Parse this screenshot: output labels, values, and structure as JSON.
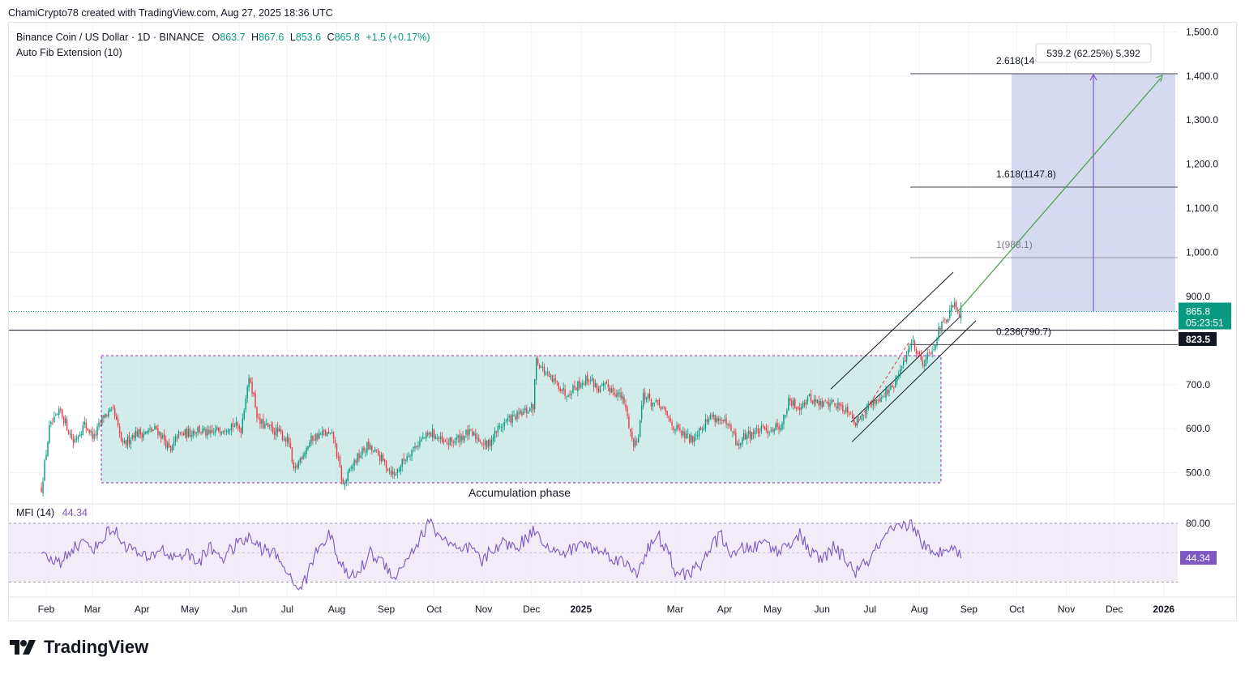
{
  "credit": "ChamiCrypto78 created with TradingView.com, Aug 27, 2025 18:36 UTC",
  "legend": {
    "symbol": "Binance Coin / US Dollar · 1D · BINANCE",
    "o_label": "O",
    "o": "863.7",
    "h_label": "H",
    "h": "867.6",
    "l_label": "L",
    "l": "853.6",
    "c_label": "C",
    "c": "865.8",
    "change": "+1.5 (+0.17%)",
    "indicator": "Auto Fib Extension (10)",
    "mfi_label": "MFI (14)",
    "mfi_value": "44.34"
  },
  "brand": "TradingView",
  "colors": {
    "up": "#089981",
    "down": "#f23645",
    "mfi": "#7e57c2",
    "zone": "#b2dfdb",
    "projection": "#c5cae9"
  },
  "chart_data": {
    "type": "candlestick",
    "title": "Binance Coin / US Dollar · 1D · BINANCE",
    "price_axis": {
      "ticks": [
        "1,500.0",
        "1,400.0",
        "1,300.0",
        "1,200.0",
        "1,100.0",
        "1,000.0",
        "900.0",
        "700.0",
        "600.0",
        "500.0"
      ],
      "ylim": [
        420,
        1500
      ]
    },
    "time_axis": {
      "ticks": [
        "Feb",
        "Mar",
        "Apr",
        "May",
        "Jun",
        "Jul",
        "Aug",
        "Sep",
        "Oct",
        "Nov",
        "Dec",
        "2025",
        "Mar",
        "Apr",
        "May",
        "Jun",
        "Jul",
        "Aug",
        "Sep",
        "Oct",
        "Nov",
        "Dec",
        "2026"
      ]
    },
    "last_price": {
      "value": "865.8",
      "countdown": "05:23:51"
    },
    "horizontal_level": "823.5",
    "fib_levels": [
      {
        "label": "2.618(14",
        "price": 1405
      },
      {
        "label": "1.618(1147.8)",
        "price": 1147.8
      },
      {
        "label": "1(988.1)",
        "price": 988.1
      },
      {
        "label": "0.236(790.7)",
        "price": 790.7
      }
    ],
    "measure_label": "539.2 (62.25%) 5,392",
    "zone_label": "Accumulation phase",
    "price_anchors": [
      [
        "2024-01-29",
        465
      ],
      [
        "2024-02-03",
        600
      ],
      [
        "2024-02-10",
        640
      ],
      [
        "2024-02-18",
        570
      ],
      [
        "2024-02-25",
        610
      ],
      [
        "2024-03-02",
        580
      ],
      [
        "2024-03-08",
        630
      ],
      [
        "2024-03-14",
        640
      ],
      [
        "2024-03-20",
        560
      ],
      [
        "2024-03-27",
        590
      ],
      [
        "2024-04-03",
        590
      ],
      [
        "2024-04-10",
        600
      ],
      [
        "2024-04-15",
        575
      ],
      [
        "2024-04-19",
        545
      ],
      [
        "2024-04-23",
        585
      ],
      [
        "2024-04-30",
        590
      ],
      [
        "2024-05-06",
        600
      ],
      [
        "2024-05-13",
        585
      ],
      [
        "2024-05-20",
        600
      ],
      [
        "2024-05-27",
        610
      ],
      [
        "2024-06-02",
        600
      ],
      [
        "2024-06-06",
        700
      ],
      [
        "2024-06-08",
        710
      ],
      [
        "2024-06-13",
        615
      ],
      [
        "2024-06-20",
        600
      ],
      [
        "2024-06-26",
        590
      ],
      [
        "2024-07-02",
        570
      ],
      [
        "2024-07-05",
        500
      ],
      [
        "2024-07-10",
        540
      ],
      [
        "2024-07-17",
        580
      ],
      [
        "2024-07-24",
        590
      ],
      [
        "2024-07-30",
        580
      ],
      [
        "2024-08-05",
        470
      ],
      [
        "2024-08-12",
        525
      ],
      [
        "2024-08-20",
        560
      ],
      [
        "2024-08-27",
        540
      ],
      [
        "2024-09-06",
        495
      ],
      [
        "2024-09-15",
        545
      ],
      [
        "2024-09-23",
        575
      ],
      [
        "2024-09-30",
        590
      ],
      [
        "2024-10-07",
        565
      ],
      [
        "2024-10-15",
        575
      ],
      [
        "2024-10-22",
        590
      ],
      [
        "2024-10-28",
        580
      ],
      [
        "2024-11-03",
        560
      ],
      [
        "2024-11-10",
        600
      ],
      [
        "2024-11-16",
        620
      ],
      [
        "2024-11-23",
        630
      ],
      [
        "2024-11-28",
        640
      ],
      [
        "2024-12-02",
        650
      ],
      [
        "2024-12-04",
        760
      ],
      [
        "2024-12-07",
        740
      ],
      [
        "2024-12-13",
        710
      ],
      [
        "2024-12-18",
        700
      ],
      [
        "2024-12-22",
        680
      ],
      [
        "2024-12-30",
        700
      ],
      [
        "2025-01-06",
        715
      ],
      [
        "2025-01-12",
        690
      ],
      [
        "2025-01-18",
        695
      ],
      [
        "2025-01-24",
        680
      ],
      [
        "2025-01-28",
        660
      ],
      [
        "2025-02-03",
        560
      ],
      [
        "2025-02-06",
        590
      ],
      [
        "2025-02-09",
        680
      ],
      [
        "2025-02-14",
        660
      ],
      [
        "2025-02-20",
        650
      ],
      [
        "2025-02-27",
        610
      ],
      [
        "2025-03-04",
        590
      ],
      [
        "2025-03-11",
        575
      ],
      [
        "2025-03-16",
        600
      ],
      [
        "2025-03-24",
        630
      ],
      [
        "2025-03-31",
        615
      ],
      [
        "2025-04-06",
        590
      ],
      [
        "2025-04-09",
        560
      ],
      [
        "2025-04-14",
        585
      ],
      [
        "2025-04-22",
        595
      ],
      [
        "2025-04-30",
        600
      ],
      [
        "2025-05-07",
        610
      ],
      [
        "2025-05-11",
        660
      ],
      [
        "2025-05-17",
        650
      ],
      [
        "2025-05-24",
        670
      ],
      [
        "2025-05-31",
        655
      ],
      [
        "2025-06-06",
        660
      ],
      [
        "2025-06-13",
        650
      ],
      [
        "2025-06-19",
        640
      ],
      [
        "2025-06-22",
        610
      ],
      [
        "2025-06-26",
        635
      ],
      [
        "2025-07-03",
        660
      ],
      [
        "2025-07-10",
        680
      ],
      [
        "2025-07-15",
        690
      ],
      [
        "2025-07-20",
        730
      ],
      [
        "2025-07-23",
        760
      ],
      [
        "2025-07-27",
        800
      ],
      [
        "2025-07-30",
        780
      ],
      [
        "2025-08-03",
        750
      ],
      [
        "2025-08-06",
        765
      ],
      [
        "2025-08-10",
        790
      ],
      [
        "2025-08-14",
        830
      ],
      [
        "2025-08-18",
        845
      ],
      [
        "2025-08-21",
        870
      ],
      [
        "2025-08-23",
        880
      ],
      [
        "2025-08-25",
        855
      ],
      [
        "2025-08-27",
        865.8
      ]
    ],
    "mfi": {
      "name": "MFI (14)",
      "bands": [
        80,
        20
      ],
      "last": 44.34,
      "anchors": [
        [
          "2024-01-29",
          45
        ],
        [
          "2024-02-10",
          40
        ],
        [
          "2024-02-17",
          55
        ],
        [
          "2024-02-25",
          60
        ],
        [
          "2024-03-03",
          55
        ],
        [
          "2024-03-10",
          70
        ],
        [
          "2024-03-14",
          75
        ],
        [
          "2024-03-20",
          60
        ],
        [
          "2024-03-27",
          52
        ],
        [
          "2024-04-05",
          42
        ],
        [
          "2024-04-12",
          55
        ],
        [
          "2024-04-20",
          45
        ],
        [
          "2024-04-28",
          50
        ],
        [
          "2024-05-06",
          40
        ],
        [
          "2024-05-14",
          55
        ],
        [
          "2024-05-22",
          45
        ],
        [
          "2024-05-30",
          58
        ],
        [
          "2024-06-07",
          65
        ],
        [
          "2024-06-14",
          55
        ],
        [
          "2024-06-22",
          50
        ],
        [
          "2024-06-30",
          35
        ],
        [
          "2024-07-05",
          15
        ],
        [
          "2024-07-12",
          20
        ],
        [
          "2024-07-20",
          55
        ],
        [
          "2024-07-27",
          70
        ],
        [
          "2024-08-03",
          40
        ],
        [
          "2024-08-08",
          25
        ],
        [
          "2024-08-15",
          30
        ],
        [
          "2024-08-22",
          50
        ],
        [
          "2024-08-30",
          40
        ],
        [
          "2024-09-07",
          25
        ],
        [
          "2024-09-14",
          45
        ],
        [
          "2024-09-21",
          60
        ],
        [
          "2024-09-28",
          82
        ],
        [
          "2024-10-03",
          70
        ],
        [
          "2024-10-10",
          60
        ],
        [
          "2024-10-17",
          50
        ],
        [
          "2024-10-24",
          55
        ],
        [
          "2024-10-31",
          40
        ],
        [
          "2024-11-07",
          55
        ],
        [
          "2024-11-14",
          60
        ],
        [
          "2024-11-21",
          55
        ],
        [
          "2024-11-28",
          65
        ],
        [
          "2024-12-04",
          75
        ],
        [
          "2024-12-11",
          55
        ],
        [
          "2024-12-18",
          48
        ],
        [
          "2024-12-25",
          52
        ],
        [
          "2025-01-01",
          60
        ],
        [
          "2025-01-08",
          55
        ],
        [
          "2025-01-15",
          50
        ],
        [
          "2025-01-22",
          45
        ],
        [
          "2025-01-29",
          38
        ],
        [
          "2025-02-05",
          30
        ],
        [
          "2025-02-12",
          55
        ],
        [
          "2025-02-19",
          65
        ],
        [
          "2025-02-26",
          45
        ],
        [
          "2025-03-02",
          25
        ],
        [
          "2025-03-09",
          30
        ],
        [
          "2025-03-16",
          35
        ],
        [
          "2025-03-23",
          55
        ],
        [
          "2025-03-30",
          68
        ],
        [
          "2025-04-06",
          45
        ],
        [
          "2025-04-13",
          55
        ],
        [
          "2025-04-20",
          55
        ],
        [
          "2025-04-27",
          62
        ],
        [
          "2025-05-04",
          50
        ],
        [
          "2025-05-11",
          60
        ],
        [
          "2025-05-18",
          68
        ],
        [
          "2025-05-25",
          50
        ],
        [
          "2025-06-01",
          42
        ],
        [
          "2025-06-08",
          55
        ],
        [
          "2025-06-15",
          45
        ],
        [
          "2025-06-22",
          30
        ],
        [
          "2025-06-29",
          40
        ],
        [
          "2025-07-06",
          55
        ],
        [
          "2025-07-13",
          70
        ],
        [
          "2025-07-20",
          75
        ],
        [
          "2025-07-27",
          80
        ],
        [
          "2025-08-03",
          60
        ],
        [
          "2025-08-10",
          45
        ],
        [
          "2025-08-17",
          55
        ],
        [
          "2025-08-21",
          60
        ],
        [
          "2025-08-27",
          44.34
        ]
      ]
    }
  }
}
